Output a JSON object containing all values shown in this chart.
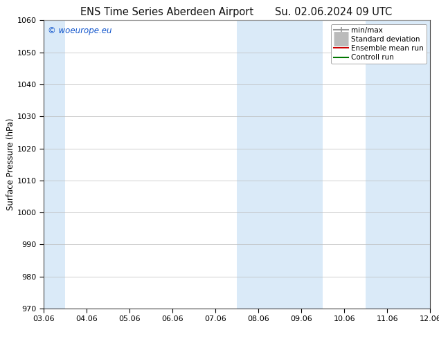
{
  "title_left": "ENS Time Series Aberdeen Airport",
  "title_right": "Su. 02.06.2024 09 UTC",
  "ylabel": "Surface Pressure (hPa)",
  "ylim": [
    970,
    1060
  ],
  "yticks": [
    970,
    980,
    990,
    1000,
    1010,
    1020,
    1030,
    1040,
    1050,
    1060
  ],
  "xtick_labels": [
    "03.06",
    "04.06",
    "05.06",
    "06.06",
    "07.06",
    "08.06",
    "09.06",
    "10.06",
    "11.06",
    "12.06"
  ],
  "num_xticks": 10,
  "xlim": [
    0,
    9
  ],
  "shaded_bands": [
    {
      "x_start": 0,
      "x_end": 0.5,
      "color": "#daeaf8"
    },
    {
      "x_start": 4.5,
      "x_end": 6.5,
      "color": "#daeaf8"
    },
    {
      "x_start": 7.5,
      "x_end": 9.0,
      "color": "#daeaf8"
    }
  ],
  "watermark_text": "© woeurope.eu",
  "watermark_color": "#1155cc",
  "legend_entries": [
    {
      "label": "min/max",
      "color": "#999999",
      "lw": 1.5,
      "linestyle": "-"
    },
    {
      "label": "Standard deviation",
      "color": "#bbbbbb",
      "lw": 5,
      "linestyle": "-"
    },
    {
      "label": "Ensemble mean run",
      "color": "#cc0000",
      "lw": 1.5,
      "linestyle": "-"
    },
    {
      "label": "Controll run",
      "color": "#007700",
      "lw": 1.5,
      "linestyle": "-"
    }
  ],
  "background_color": "#ffffff",
  "grid_color": "#bbbbbb",
  "title_fontsize": 10.5,
  "tick_fontsize": 8,
  "ylabel_fontsize": 8.5,
  "legend_fontsize": 7.5
}
